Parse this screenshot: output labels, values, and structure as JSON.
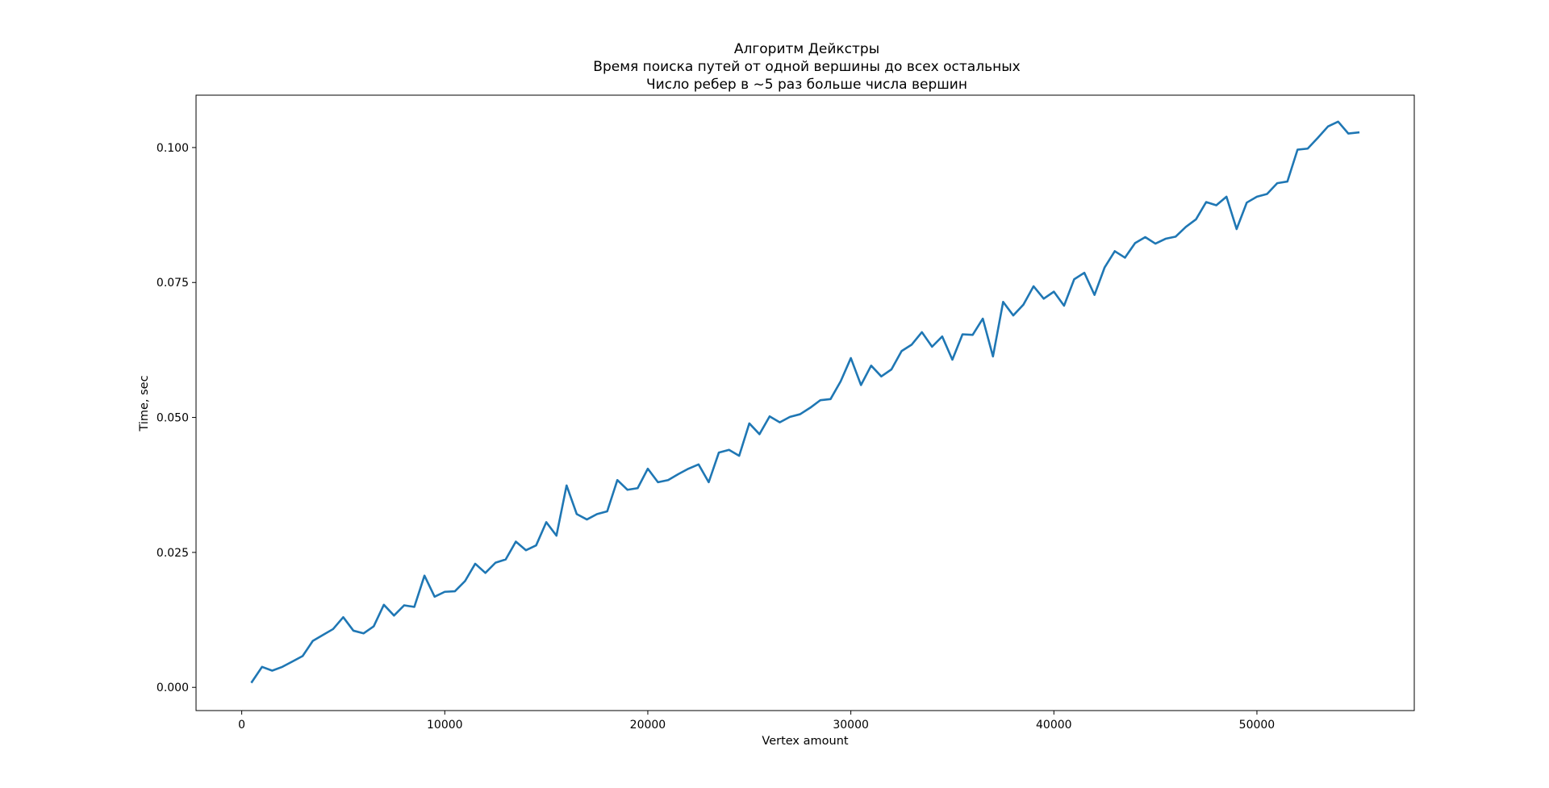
{
  "chart_data": {
    "type": "line",
    "title_lines": [
      "Алгоритм Дейкстры",
      "Время поиска путей от одной вершины до всех остальных",
      "Число ребер в ~5 раз больше числа вершин"
    ],
    "xlabel": "Vertex amount",
    "ylabel": "Time, sec",
    "xlim": [
      -2250,
      57750
    ],
    "ylim": [
      -0.0043,
      0.1097
    ],
    "x_ticks": [
      0,
      10000,
      20000,
      30000,
      40000,
      50000
    ],
    "x_tick_labels": [
      "0",
      "10000",
      "20000",
      "30000",
      "40000",
      "50000"
    ],
    "y_ticks": [
      0.0,
      0.025,
      0.05,
      0.075,
      0.1
    ],
    "y_tick_labels": [
      "0.000",
      "0.025",
      "0.050",
      "0.075",
      "0.100"
    ],
    "grid": false,
    "line_color": "#1f77b4",
    "series": [
      {
        "x": [
          500,
          1000,
          1500,
          2000,
          2500,
          3000,
          3500,
          4000,
          4500,
          5000,
          5500,
          6000,
          6500,
          7000,
          7500,
          8000,
          8500,
          9000,
          9500,
          10000,
          10500,
          11000,
          11500,
          12000,
          12500,
          13000,
          13500,
          14000,
          14500,
          15000,
          15500,
          16000,
          16500,
          17000,
          17500,
          18000,
          18500,
          19000,
          19500,
          20000,
          20500,
          21000,
          21500,
          22000,
          22500,
          23000,
          23500,
          24000,
          24500,
          25000,
          25500,
          26000,
          26500,
          27000,
          27500,
          28000,
          28500,
          29000,
          29500,
          30000,
          30500,
          31000,
          31500,
          32000,
          32500,
          33000,
          33500,
          34000,
          34500,
          35000,
          35500,
          36000,
          36500,
          37000,
          37500,
          38000,
          38500,
          39000,
          39500,
          40000,
          40500,
          41000,
          41500,
          42000,
          42500,
          43000,
          43500,
          44000,
          44500,
          45000,
          45500,
          46000,
          46500,
          47000,
          47500,
          48000,
          48500,
          49000,
          49500,
          50000,
          50500,
          51000,
          51500,
          52000,
          52500,
          53000,
          53500,
          54000,
          54500,
          55000
        ],
        "values": [
          0.001,
          0.0038,
          0.0031,
          0.0038,
          0.0048,
          0.0058,
          0.0086,
          0.0097,
          0.0108,
          0.013,
          0.0105,
          0.01,
          0.0113,
          0.0153,
          0.0133,
          0.0152,
          0.0149,
          0.0207,
          0.0168,
          0.0177,
          0.0178,
          0.0197,
          0.0229,
          0.0212,
          0.0231,
          0.0237,
          0.027,
          0.0254,
          0.0263,
          0.0306,
          0.0281,
          0.0374,
          0.0321,
          0.0311,
          0.0321,
          0.0326,
          0.0384,
          0.0366,
          0.0369,
          0.0405,
          0.038,
          0.0384,
          0.0395,
          0.0405,
          0.0413,
          0.038,
          0.0435,
          0.044,
          0.0429,
          0.0489,
          0.0469,
          0.0502,
          0.0491,
          0.0501,
          0.0506,
          0.0518,
          0.0532,
          0.0534,
          0.0567,
          0.061,
          0.056,
          0.0596,
          0.0576,
          0.0589,
          0.0623,
          0.0635,
          0.0658,
          0.0631,
          0.065,
          0.0607,
          0.0654,
          0.0653,
          0.0683,
          0.0613,
          0.0714,
          0.0689,
          0.0709,
          0.0743,
          0.072,
          0.0733,
          0.0707,
          0.0756,
          0.0768,
          0.0727,
          0.0778,
          0.0808,
          0.0796,
          0.0823,
          0.0834,
          0.0822,
          0.0831,
          0.0835,
          0.0853,
          0.0867,
          0.0899,
          0.0893,
          0.0909,
          0.0849,
          0.0898,
          0.0909,
          0.0914,
          0.0934,
          0.0937,
          0.0996,
          0.0998,
          0.1018,
          0.1039,
          0.1048,
          0.1026,
          0.1028
        ]
      }
    ]
  }
}
